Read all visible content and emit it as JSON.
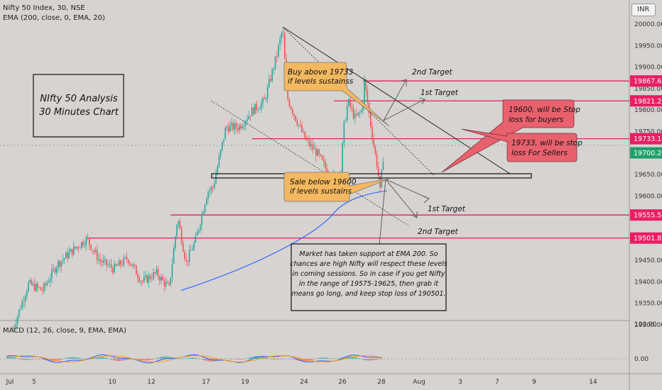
{
  "header": {
    "symbol_line": "Nifty 50 Index, 30, NSE",
    "indicator_line": "EMA (200, close, 0, EMA, 20)",
    "macd_label": "MACD (12, 26, close, 9, EMA, EMA)",
    "currency_button": "INR"
  },
  "colors": {
    "background": "#d6d3d1",
    "up_candle": "#26a69a",
    "down_candle": "#ef5350",
    "ema_line": "#2962ff",
    "level_line": "#e91e63",
    "callout_yellow": "#f4b860",
    "callout_red": "#e8616d",
    "price_tag_current": "#22a06b"
  },
  "chart_data": {
    "type": "candlestick",
    "title": "Nifty 50 Index, 30, NSE",
    "price_axis": {
      "range": [
        19260,
        20030
      ],
      "tick_labels": [
        "20000.00",
        "19950.00",
        "19900.00",
        "19850.00",
        "19800.00",
        "19750.00",
        "19650.00",
        "19600.00",
        "19450.00",
        "19400.00",
        "19350.00",
        "19300.00"
      ]
    },
    "macd_axis": {
      "range": [
        -2,
        100
      ],
      "tick_labels": [
        "100.00",
        "0.00"
      ]
    },
    "x_tick_labels": [
      "Jul",
      "5",
      "10",
      "12",
      "17",
      "19",
      "24",
      "26",
      "28",
      "Aug",
      "3",
      "7",
      "9",
      "14"
    ],
    "price_levels": [
      {
        "label": "19867.65",
        "value": 19867.65
      },
      {
        "label": "19821.25",
        "value": 19821.25
      },
      {
        "label": "19733.15",
        "value": 19733.15
      },
      {
        "label": "19555.55",
        "value": 19555.55
      },
      {
        "label": "19501.85",
        "value": 19501.85
      }
    ],
    "current_price": {
      "label": "19700.20",
      "value": 19700.2
    },
    "key_points": [
      {
        "t": "Jul 3",
        "price": 19290
      },
      {
        "t": "Jul 17",
        "price": 19620
      },
      {
        "t": "Jul 20",
        "price": 19990
      },
      {
        "t": "Jul 25",
        "price": 19640
      },
      {
        "t": "Jul 27",
        "price": 19867
      },
      {
        "t": "Jul 28",
        "price": 19610
      },
      {
        "t": "Jul 28",
        "price": 19700
      }
    ],
    "ema200": [
      {
        "t": "Jul 14",
        "value": 19380
      },
      {
        "t": "Jul 20",
        "value": 19470
      },
      {
        "t": "Jul 24",
        "value": 19555
      },
      {
        "t": "Jul 26",
        "value": 19590
      },
      {
        "t": "Jul 28",
        "value": 19610
      }
    ]
  },
  "annotations": {
    "title_box": [
      "NIfty 50 Analysis",
      "30 Minutes Chart"
    ],
    "buy_note": [
      "Buy above 19733",
      "if levels sustainss"
    ],
    "sale_note": [
      "Sale below 19600",
      "if levels sustains"
    ],
    "stop_buyers": [
      "19600, will be Stop",
      "loss for buyers"
    ],
    "stop_sellers": [
      "19733, will be stop",
      "loss For Sellers"
    ],
    "upper_2nd_target": "2nd Target",
    "upper_1st_target": "1st Target",
    "lower_1st_target": "1st Target",
    "lower_2nd_target": "2nd Target",
    "market_note": [
      "Market has taken support at EMA 200. So",
      "chances are high Nifty will respect these levels",
      "in coming sessions. So in case if you get Nifty",
      "in the range of 19575-19625, then grab it",
      "means go long, and keep stop loss of 190501."
    ]
  }
}
